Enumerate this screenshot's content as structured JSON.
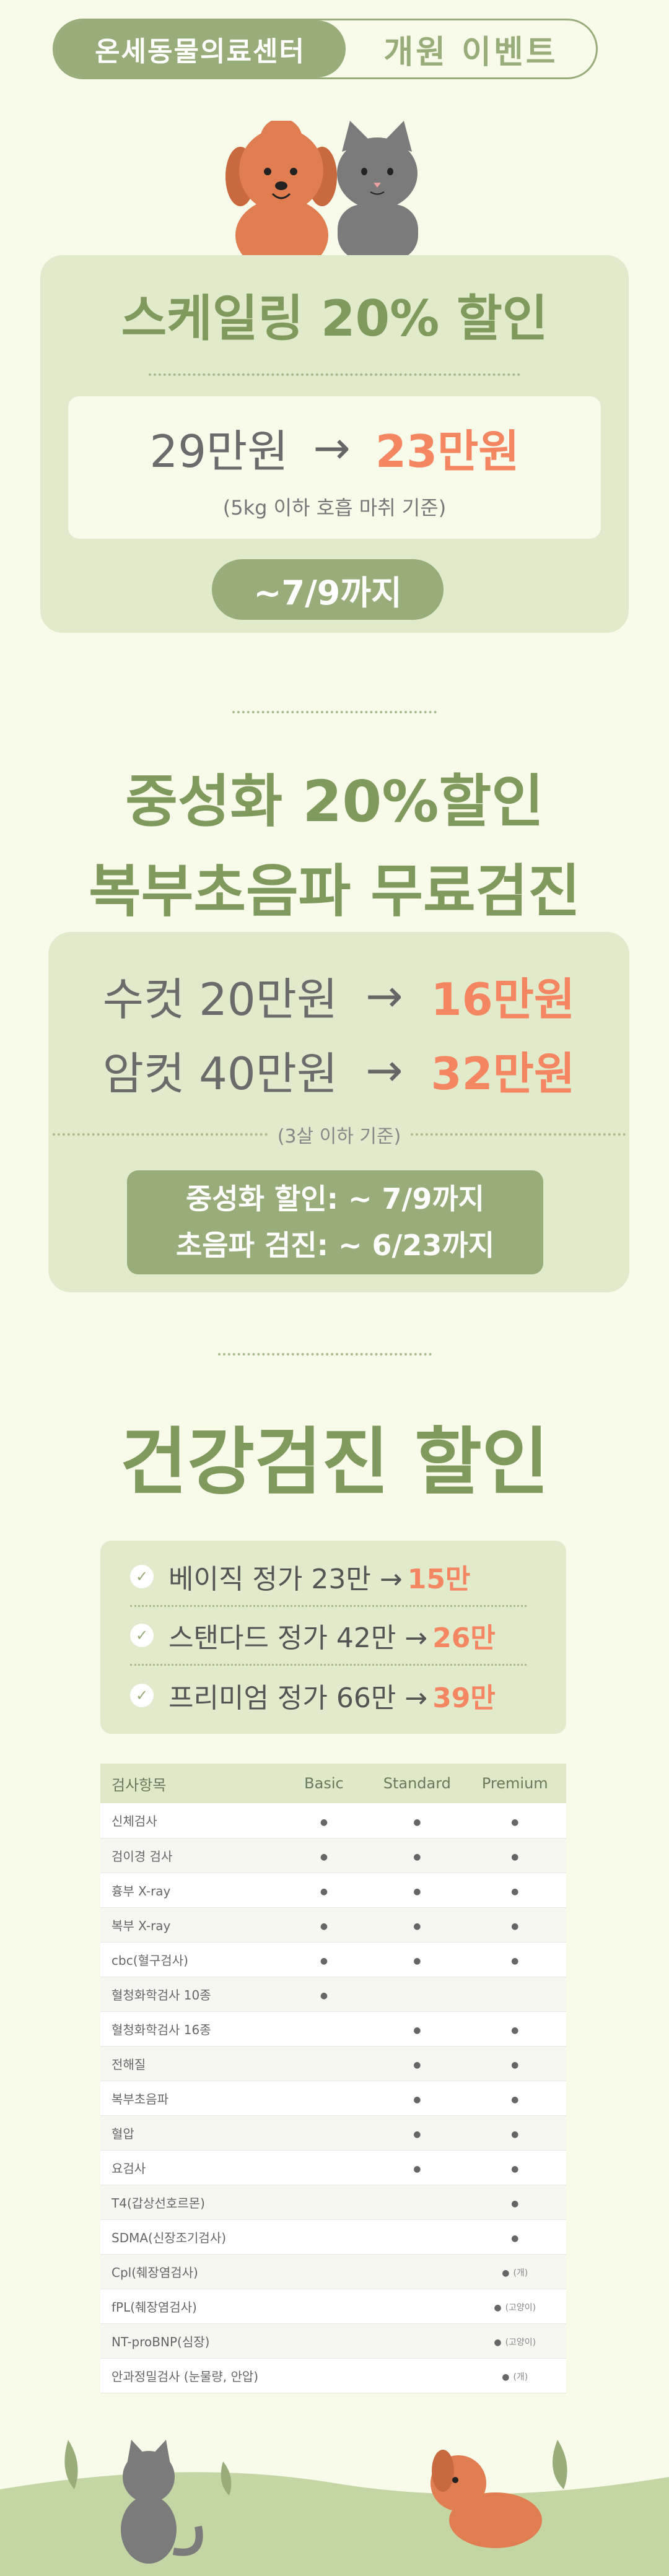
{
  "header": {
    "center_name": "온세동물의료센터",
    "event_title": "개원 이벤트"
  },
  "scaling": {
    "title": "스케일링 20% 할인",
    "old_price": "29만원",
    "arrow": "→",
    "new_price": "23만원",
    "condition": "(5kg 이하 호흡 마취 기준)",
    "deadline": "~7/9까지"
  },
  "neuter": {
    "title_line1": "중성화 20%할인",
    "title_line2": "복부초음파 무료검진",
    "male_old": "수컷 20만원",
    "male_new": "16만원",
    "female_old": "암컷 40만원",
    "female_new": "32만원",
    "arrow": "→",
    "condition": "(3살 이하 기준)",
    "deadline1": "중성화 할인: ~ 7/9까지",
    "deadline2": "초음파 검진: ~ 6/23까지"
  },
  "checkup": {
    "title": "건강검진 할인",
    "offers": [
      {
        "check": "✓",
        "text": "베이직 정가 23만 →",
        "price": "15만"
      },
      {
        "check": "✓",
        "text": "스탠다드 정가 42만 →",
        "price": "26만"
      },
      {
        "check": "✓",
        "text": "프리미엄 정가 66만 →",
        "price": "39만"
      }
    ],
    "table": {
      "headers": [
        "검사항목",
        "Basic",
        "Standard",
        "Premium"
      ],
      "rows": [
        {
          "name": "신체검사",
          "basic": "●",
          "standard": "●",
          "premium": "●"
        },
        {
          "name": "검이경 검사",
          "basic": "●",
          "standard": "●",
          "premium": "●"
        },
        {
          "name": "흉부 X-ray",
          "basic": "●",
          "standard": "●",
          "premium": "●"
        },
        {
          "name": "복부 X-ray",
          "basic": "●",
          "standard": "●",
          "premium": "●"
        },
        {
          "name": "cbc(혈구검사)",
          "basic": "●",
          "standard": "●",
          "premium": "●"
        },
        {
          "name": "혈청화학검사 10종",
          "basic": "●",
          "standard": "",
          "premium": ""
        },
        {
          "name": "혈청화학검사 16종",
          "basic": "",
          "standard": "●",
          "premium": "●"
        },
        {
          "name": "전해질",
          "basic": "",
          "standard": "●",
          "premium": "●"
        },
        {
          "name": "복부초음파",
          "basic": "",
          "standard": "●",
          "premium": "●"
        },
        {
          "name": "혈압",
          "basic": "",
          "standard": "●",
          "premium": "●"
        },
        {
          "name": "요검사",
          "basic": "",
          "standard": "●",
          "premium": "●"
        },
        {
          "name": "T4(갑상선호르몬)",
          "basic": "",
          "standard": "",
          "premium": "●"
        },
        {
          "name": "SDMA(신장조기검사)",
          "basic": "",
          "standard": "",
          "premium": "●"
        },
        {
          "name": "Cpl(췌장염검사)",
          "basic": "",
          "standard": "",
          "premium": "●",
          "note": "(개)"
        },
        {
          "name": "fPL(췌장염검사)",
          "basic": "",
          "standard": "",
          "premium": "●",
          "note": "(고양이)"
        },
        {
          "name": "NT-proBNP(심장)",
          "basic": "",
          "standard": "",
          "premium": "●",
          "note": "(고양이)"
        },
        {
          "name": "안과정밀검사 (눈물량, 안압)",
          "basic": "",
          "standard": "",
          "premium": "●",
          "note": "(개)"
        }
      ]
    }
  },
  "colors": {
    "accent": "#98ad7a",
    "title_green": "#7f9a5c",
    "price_orange": "#f58662",
    "card_bg": "#e1ebcc",
    "page_bg": "#f8fbea"
  }
}
